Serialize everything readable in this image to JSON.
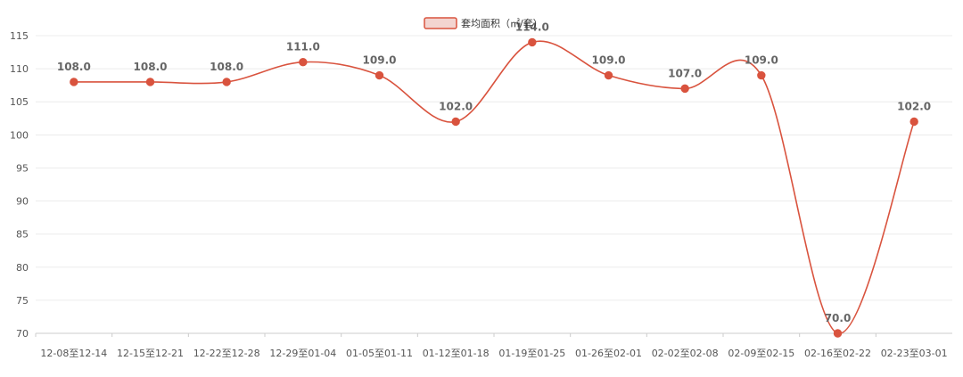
{
  "chart_data": {
    "type": "line",
    "title": "",
    "xlabel": "",
    "ylabel": "",
    "ylim": [
      70,
      115
    ],
    "yticks": [
      70,
      75,
      80,
      85,
      90,
      95,
      100,
      105,
      110,
      115
    ],
    "grid": true,
    "legend_position": "top-center",
    "categories": [
      "12-08至12-14",
      "12-15至12-21",
      "12-22至12-28",
      "12-29至01-04",
      "01-05至01-11",
      "01-12至01-18",
      "01-19至01-25",
      "01-26至02-01",
      "02-02至02-08",
      "02-09至02-15",
      "02-16至02-22",
      "02-23至03-01"
    ],
    "series": [
      {
        "name": "套均面积（㎡/套）",
        "color": "#d9533e",
        "values": [
          108.0,
          108.0,
          108.0,
          111.0,
          109.0,
          102.0,
          114.0,
          109.0,
          107.0,
          109.0,
          70.0,
          102.0
        ],
        "labels": [
          "108.0",
          "108.0",
          "108.0",
          "111.0",
          "109.0",
          "102.0",
          "114.0",
          "109.0",
          "107.0",
          "109.0",
          "70.0",
          "102.0"
        ]
      }
    ]
  }
}
